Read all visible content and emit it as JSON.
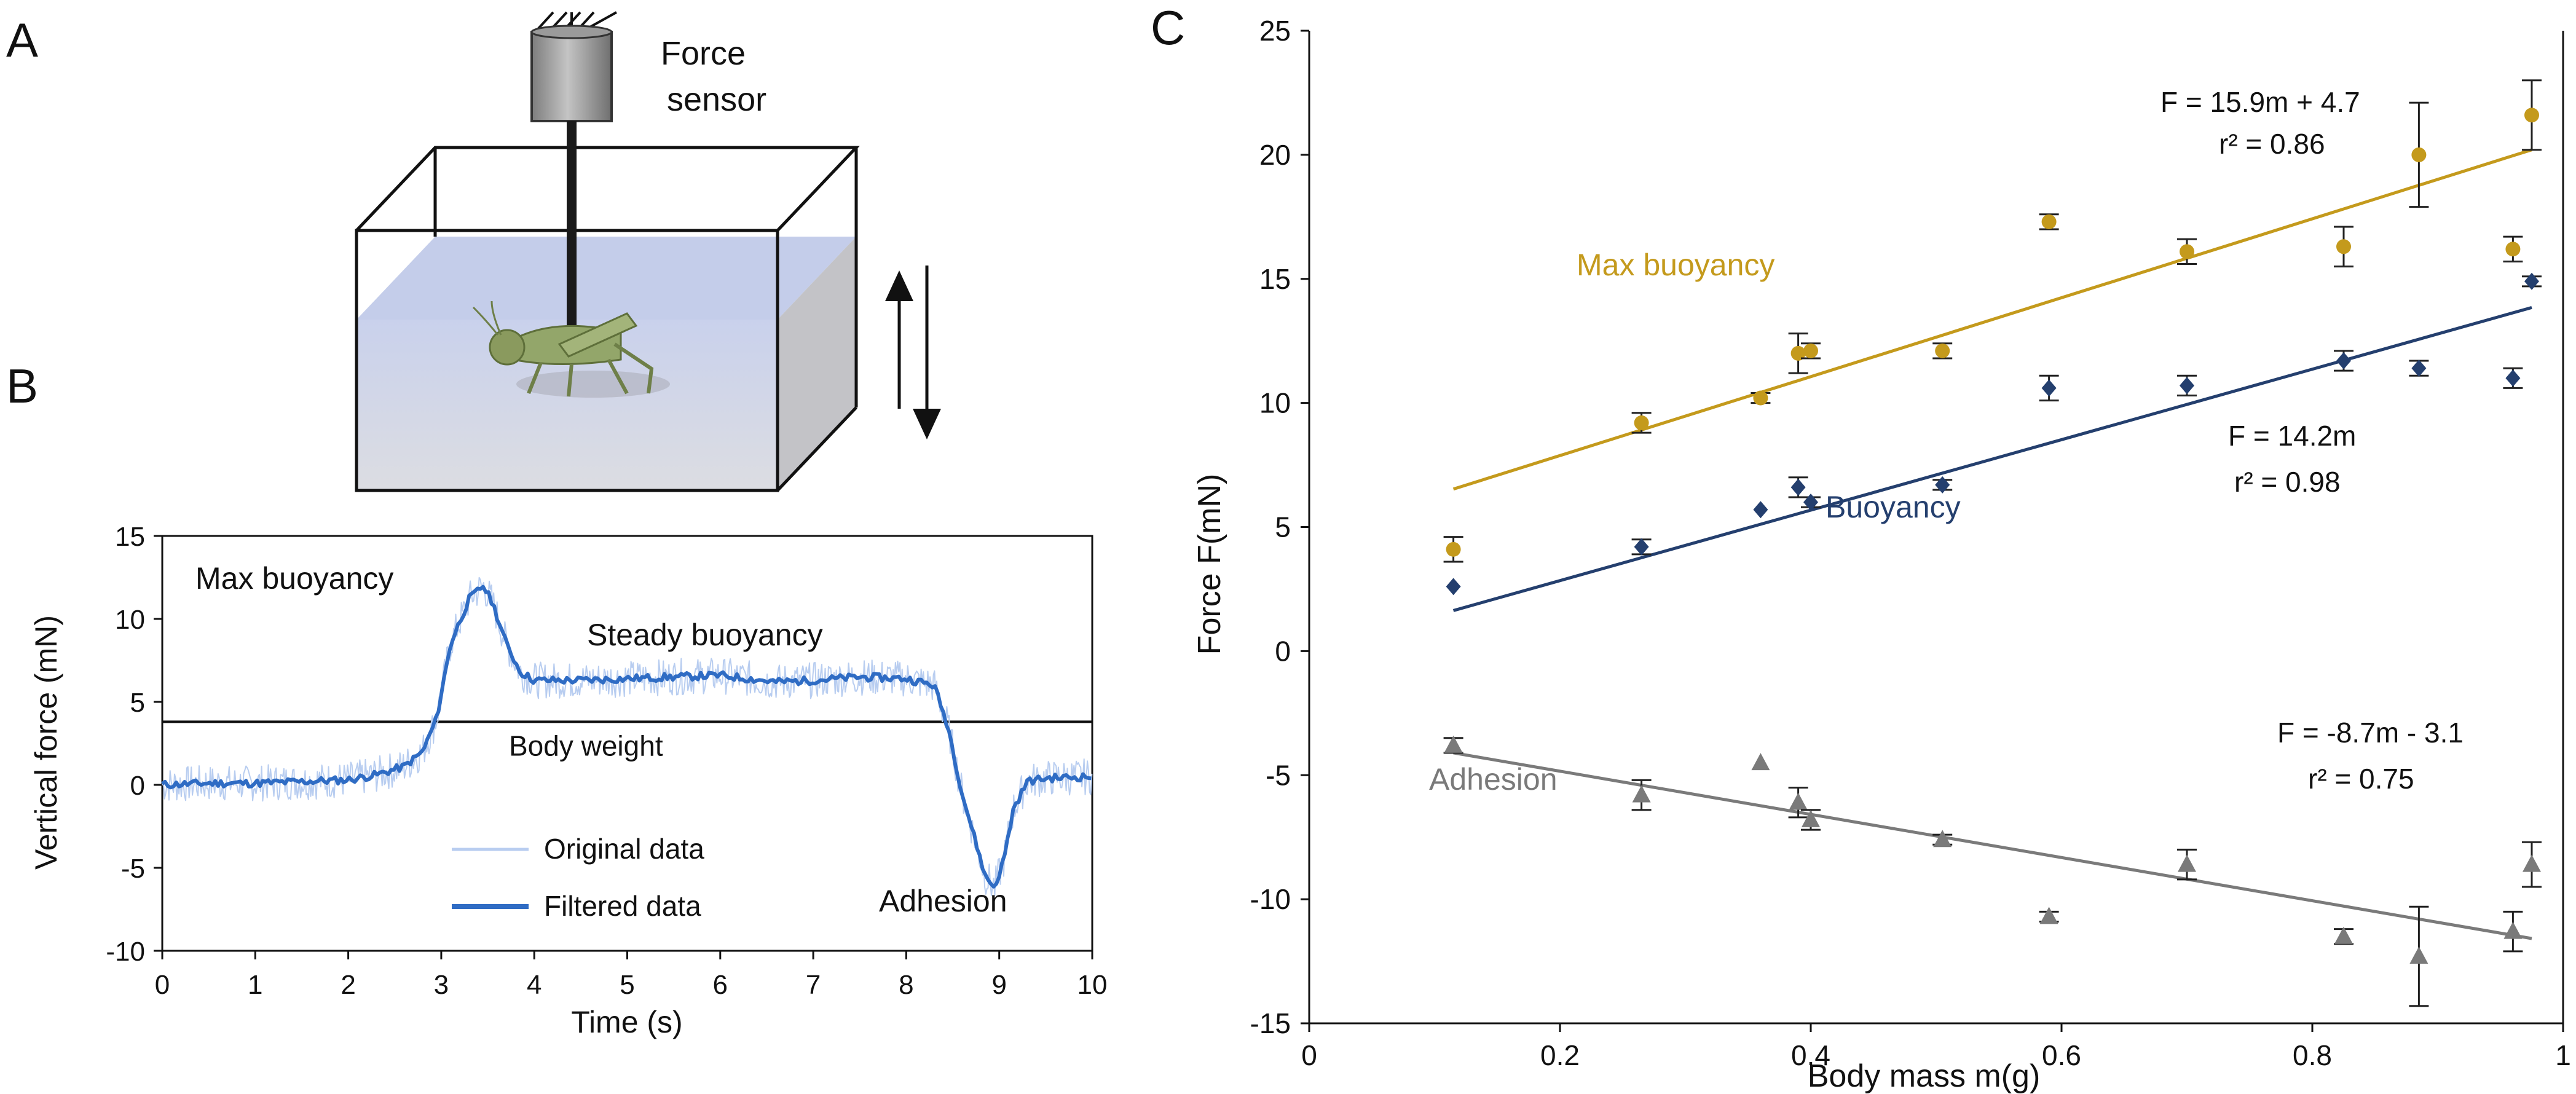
{
  "panel_labels": {
    "a": "A",
    "b": "B",
    "c": "C"
  },
  "panel_a": {
    "sensor_label_line1": "Force",
    "sensor_label_line2": "sensor"
  },
  "colors": {
    "max_buoyancy": "#c49a1c",
    "buoyancy": "#243f6e",
    "adhesion": "#7a7a7a",
    "original_data": "#b8cdf0",
    "filtered_data": "#2f6cc4",
    "water_top": "#c9d1ec",
    "water_bottom": "#dcdde2"
  },
  "chart_data": [
    {
      "type": "line",
      "panel": "B",
      "xlabel": "Time (s)",
      "ylabel": "Vertical force (mN)",
      "xlim": [
        0,
        10
      ],
      "ylim": [
        -10,
        15
      ],
      "xticks": [
        "0",
        "1",
        "2",
        "3",
        "4",
        "5",
        "6",
        "7",
        "8",
        "9",
        "10"
      ],
      "yticks": [
        "-10",
        "-5",
        "0",
        "5",
        "10",
        "15"
      ],
      "reference_line": {
        "y": 3.8,
        "label": "Body weight"
      },
      "annotations": [
        "Max buoyancy",
        "Steady buoyancy",
        "Adhesion"
      ],
      "legend": {
        "position": "bottom-left",
        "entries": [
          "Original data",
          "Filtered data"
        ]
      },
      "series": [
        {
          "name": "Filtered data",
          "x": [
            0,
            0.5,
            1.0,
            1.5,
            2.0,
            2.3,
            2.6,
            2.8,
            2.95,
            3.1,
            3.3,
            3.45,
            3.55,
            3.7,
            3.85,
            4.0,
            4.5,
            5.0,
            5.5,
            6.0,
            6.3,
            6.6,
            7.0,
            7.5,
            8.0,
            8.3,
            8.45,
            8.6,
            8.75,
            8.85,
            8.95,
            9.05,
            9.15,
            9.3,
            9.5,
            10.0
          ],
          "y": [
            0,
            0.1,
            0.1,
            0.2,
            0.3,
            0.6,
            1.1,
            2.0,
            4.0,
            8.5,
            11.2,
            12.0,
            11.0,
            8.5,
            6.8,
            6.3,
            6.3,
            6.4,
            6.5,
            6.6,
            6.4,
            6.2,
            6.3,
            6.5,
            6.4,
            6.0,
            3.5,
            -0.5,
            -3.5,
            -5.5,
            -6.2,
            -4.5,
            -1.5,
            0.2,
            0.4,
            0.5
          ]
        }
      ]
    },
    {
      "type": "scatter",
      "panel": "C",
      "xlabel": "Body mass m(g)",
      "ylabel": "Force F(mN)",
      "xlim": [
        0,
        1
      ],
      "ylim": [
        -15,
        25
      ],
      "xticks": [
        "0",
        "0.2",
        "0.4",
        "0.6",
        "0.8",
        "1"
      ],
      "yticks": [
        "-15",
        "-10",
        "-5",
        "0",
        "5",
        "10",
        "15",
        "20",
        "25"
      ],
      "series": [
        {
          "name": "Max buoyancy",
          "marker": "circle",
          "fit": {
            "equation": "F = 15.9m + 4.7",
            "r2": "r² = 0.86",
            "slope": 15.9,
            "intercept": 4.7,
            "x_range": [
              0.115,
              0.975
            ]
          },
          "points": [
            {
              "x": 0.115,
              "y": 4.1,
              "err": 0.5
            },
            {
              "x": 0.265,
              "y": 9.2,
              "err": 0.4
            },
            {
              "x": 0.36,
              "y": 10.2,
              "err": 0.2
            },
            {
              "x": 0.39,
              "y": 12.0,
              "err": 0.8
            },
            {
              "x": 0.4,
              "y": 12.1,
              "err": 0.3
            },
            {
              "x": 0.505,
              "y": 12.1,
              "err": 0.3
            },
            {
              "x": 0.59,
              "y": 17.3,
              "err": 0.3
            },
            {
              "x": 0.7,
              "y": 16.1,
              "err": 0.5
            },
            {
              "x": 0.825,
              "y": 16.3,
              "err": 0.8
            },
            {
              "x": 0.885,
              "y": 20.0,
              "err": 2.1
            },
            {
              "x": 0.96,
              "y": 16.2,
              "err": 0.5
            },
            {
              "x": 0.975,
              "y": 21.6,
              "err": 1.4
            }
          ]
        },
        {
          "name": "Buoyancy",
          "marker": "diamond",
          "fit": {
            "equation": "F = 14.2m",
            "r2": "r² = 0.98",
            "slope": 14.2,
            "intercept": 0,
            "x_range": [
              0.115,
              0.975
            ]
          },
          "points": [
            {
              "x": 0.115,
              "y": 2.6,
              "err": 0
            },
            {
              "x": 0.265,
              "y": 4.2,
              "err": 0.3
            },
            {
              "x": 0.36,
              "y": 5.7,
              "err": 0
            },
            {
              "x": 0.39,
              "y": 6.6,
              "err": 0.4
            },
            {
              "x": 0.4,
              "y": 6.0,
              "err": 0.2
            },
            {
              "x": 0.505,
              "y": 6.7,
              "err": 0.2
            },
            {
              "x": 0.59,
              "y": 10.6,
              "err": 0.5
            },
            {
              "x": 0.7,
              "y": 10.7,
              "err": 0.4
            },
            {
              "x": 0.825,
              "y": 11.7,
              "err": 0.4
            },
            {
              "x": 0.885,
              "y": 11.4,
              "err": 0.3
            },
            {
              "x": 0.96,
              "y": 11.0,
              "err": 0.4
            },
            {
              "x": 0.975,
              "y": 14.9,
              "err": 0.2
            }
          ]
        },
        {
          "name": "Adhesion",
          "marker": "triangle",
          "fit": {
            "equation": "F = -8.7m - 3.1",
            "r2": "r² = 0.75",
            "slope": -8.7,
            "intercept": -3.1,
            "x_range": [
              0.115,
              0.975
            ]
          },
          "points": [
            {
              "x": 0.115,
              "y": -3.8,
              "err": 0.3
            },
            {
              "x": 0.265,
              "y": -5.8,
              "err": 0.6
            },
            {
              "x": 0.36,
              "y": -4.5,
              "err": 0
            },
            {
              "x": 0.39,
              "y": -6.1,
              "err": 0.6
            },
            {
              "x": 0.4,
              "y": -6.8,
              "err": 0.4
            },
            {
              "x": 0.505,
              "y": -7.6,
              "err": 0.2
            },
            {
              "x": 0.59,
              "y": -10.7,
              "err": 0.2
            },
            {
              "x": 0.7,
              "y": -8.6,
              "err": 0.6
            },
            {
              "x": 0.825,
              "y": -11.5,
              "err": 0.3
            },
            {
              "x": 0.885,
              "y": -12.3,
              "err": 2.0
            },
            {
              "x": 0.96,
              "y": -11.3,
              "err": 0.8
            },
            {
              "x": 0.975,
              "y": -8.6,
              "err": 0.9
            }
          ]
        }
      ]
    }
  ]
}
